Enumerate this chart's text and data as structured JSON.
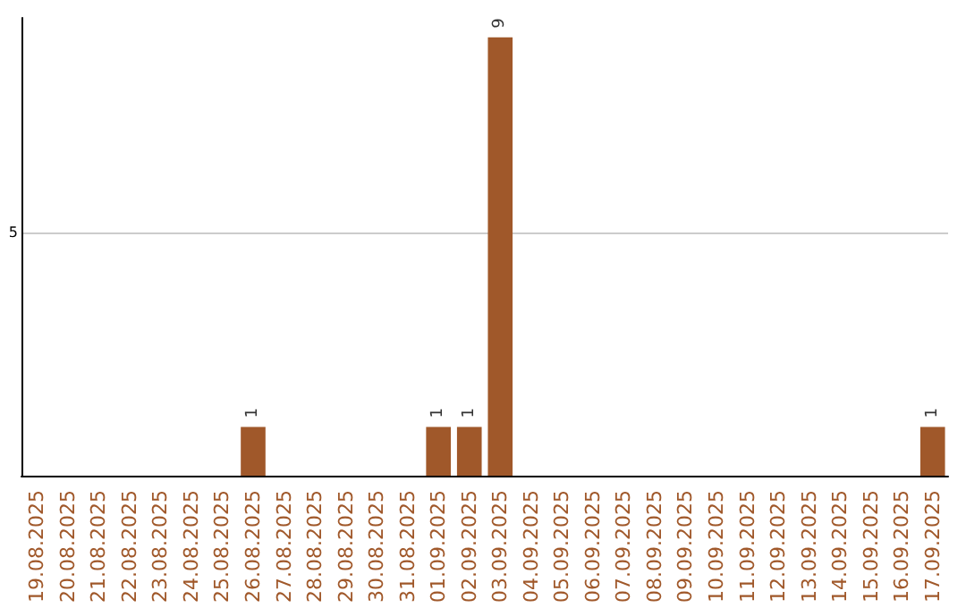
{
  "chart_data": {
    "type": "bar",
    "categories": [
      "19.08.2025",
      "20.08.2025",
      "21.08.2025",
      "22.08.2025",
      "23.08.2025",
      "24.08.2025",
      "25.08.2025",
      "26.08.2025",
      "27.08.2025",
      "28.08.2025",
      "29.08.2025",
      "30.08.2025",
      "31.08.2025",
      "01.09.2025",
      "02.09.2025",
      "03.09.2025",
      "04.09.2025",
      "05.09.2025",
      "06.09.2025",
      "07.09.2025",
      "08.09.2025",
      "09.09.2025",
      "10.09.2025",
      "11.09.2025",
      "12.09.2025",
      "13.09.2025",
      "14.09.2025",
      "15.09.2025",
      "16.09.2025",
      "17.09.2025"
    ],
    "values": [
      0,
      0,
      0,
      0,
      0,
      0,
      0,
      1,
      0,
      0,
      0,
      0,
      0,
      1,
      1,
      9,
      0,
      0,
      0,
      0,
      0,
      0,
      0,
      0,
      0,
      0,
      0,
      0,
      0,
      1
    ],
    "value_labels": [
      null,
      null,
      null,
      null,
      null,
      null,
      null,
      "1",
      null,
      null,
      null,
      null,
      null,
      "1",
      "1",
      "9",
      null,
      null,
      null,
      null,
      null,
      null,
      null,
      null,
      null,
      null,
      null,
      null,
      null,
      "1"
    ],
    "color": "#a0582a",
    "ylim": [
      0,
      9.4
    ],
    "yticks": [
      5
    ],
    "grid": "y"
  }
}
